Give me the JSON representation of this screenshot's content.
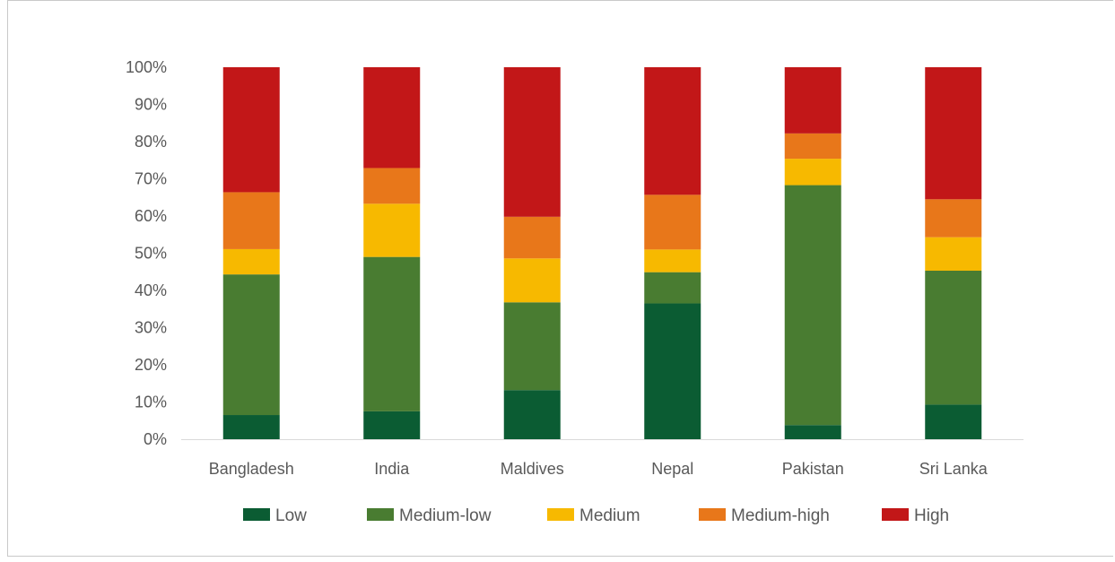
{
  "chart_data": {
    "type": "bar",
    "stacked": true,
    "percent": true,
    "categories": [
      "Bangladesh",
      "India",
      "Maldives",
      "Nepal",
      "Pakistan",
      "Sri Lanka"
    ],
    "series": [
      {
        "name": "Low",
        "color": "#0b5c33",
        "values": [
          6.5,
          7.5,
          13.2,
          36.5,
          3.8,
          9.3
        ]
      },
      {
        "name": "Medium-low",
        "color": "#497c31",
        "values": [
          37.8,
          41.5,
          23.6,
          8.4,
          64.5,
          36.0
        ]
      },
      {
        "name": "Medium",
        "color": "#f7b900",
        "values": [
          6.8,
          14.3,
          11.8,
          6.1,
          7.1,
          9.0
        ]
      },
      {
        "name": "Medium-high",
        "color": "#e8771a",
        "values": [
          15.3,
          9.6,
          11.2,
          14.7,
          6.8,
          10.2
        ]
      },
      {
        "name": "High",
        "color": "#c21718",
        "values": [
          33.6,
          27.1,
          40.2,
          34.3,
          17.8,
          35.5
        ]
      }
    ],
    "ylim": [
      0,
      100
    ],
    "yticks": [
      "0%",
      "10%",
      "20%",
      "30%",
      "40%",
      "50%",
      "60%",
      "70%",
      "80%",
      "90%",
      "100%"
    ],
    "title": "",
    "xlabel": "",
    "ylabel": "",
    "legend_position": "bottom",
    "grid": false,
    "axis_color": "#d9d9d9"
  }
}
